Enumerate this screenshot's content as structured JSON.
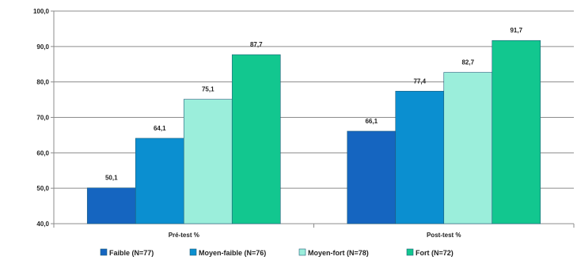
{
  "chart_data": {
    "type": "bar",
    "categories": [
      "Pré-test %",
      "Post-test %"
    ],
    "series": [
      {
        "name": "Faible (N=77)",
        "values": [
          50.1,
          66.1
        ],
        "labels": [
          "50,1",
          "66,1"
        ],
        "color": "#1565c0"
      },
      {
        "name": "Moyen-faible (N=76)",
        "values": [
          64.1,
          77.4
        ],
        "labels": [
          "64,1",
          "77,4"
        ],
        "color": "#0b8fd0"
      },
      {
        "name": "Moyen-fort (N=78)",
        "values": [
          75.1,
          82.7
        ],
        "labels": [
          "75,1",
          "82,7"
        ],
        "color": "#9beedb"
      },
      {
        "name": "Fort (N=72)",
        "values": [
          87.7,
          91.7
        ],
        "labels": [
          "87,7",
          "91,7"
        ],
        "color": "#12c78f"
      }
    ],
    "ylim": [
      40,
      100
    ],
    "yticks": [
      40,
      50,
      60,
      70,
      80,
      90,
      100
    ],
    "ytick_labels": [
      "40,0",
      "50,0",
      "60,0",
      "70,0",
      "80,0",
      "90,0",
      "100,0"
    ],
    "grid": true,
    "legend_position": "bottom",
    "title": "",
    "xlabel": "",
    "ylabel": ""
  }
}
